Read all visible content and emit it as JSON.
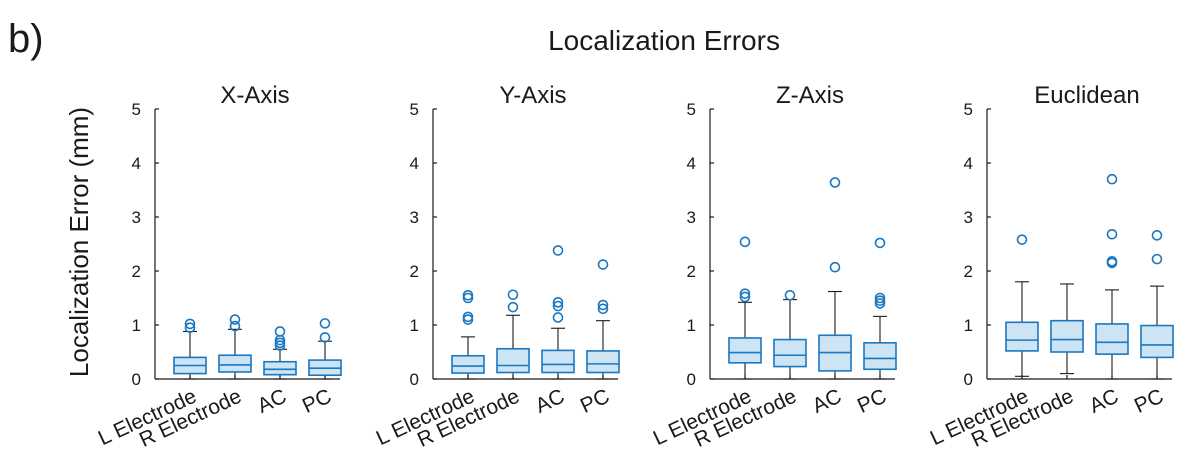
{
  "figure": {
    "panel_tag": "b)",
    "title": "Localization Errors",
    "ylabel": "Localization Error (mm)"
  },
  "chart_data": {
    "type": "box",
    "title": "Localization Errors",
    "ylabel": "Localization Error (mm)",
    "ylim": [
      0,
      5
    ],
    "yticks": [
      0,
      1,
      2,
      3,
      4,
      5
    ],
    "categories": [
      "L Electrode",
      "R Electrode",
      "AC",
      "PC"
    ],
    "colors": {
      "box_fill": "#cce4f3",
      "box_edge": "#1a78c2",
      "whisker": "#1a1a1a",
      "outlier": "#1a78c2"
    },
    "panels": [
      {
        "title": "X-Axis",
        "boxes": [
          {
            "category": "L Electrode",
            "whisker_low": 0.0,
            "q1": 0.1,
            "median": 0.25,
            "q3": 0.4,
            "whisker_high": 0.88,
            "outliers": [
              0.95,
              1.02
            ]
          },
          {
            "category": "R Electrode",
            "whisker_low": 0.0,
            "q1": 0.13,
            "median": 0.26,
            "q3": 0.44,
            "whisker_high": 0.92,
            "outliers": [
              0.98,
              1.1
            ]
          },
          {
            "category": "AC",
            "whisker_low": 0.0,
            "q1": 0.08,
            "median": 0.18,
            "q3": 0.32,
            "whisker_high": 0.55,
            "outliers": [
              0.62,
              0.67,
              0.72,
              0.88
            ]
          },
          {
            "category": "PC",
            "whisker_low": 0.0,
            "q1": 0.07,
            "median": 0.2,
            "q3": 0.35,
            "whisker_high": 0.7,
            "outliers": [
              0.77,
              1.03
            ]
          }
        ]
      },
      {
        "title": "Y-Axis",
        "boxes": [
          {
            "category": "L Electrode",
            "whisker_low": 0.0,
            "q1": 0.11,
            "median": 0.24,
            "q3": 0.43,
            "whisker_high": 0.78,
            "outliers": [
              1.1,
              1.15,
              1.5,
              1.55
            ]
          },
          {
            "category": "R Electrode",
            "whisker_low": 0.0,
            "q1": 0.12,
            "median": 0.25,
            "q3": 0.56,
            "whisker_high": 1.18,
            "outliers": [
              1.33,
              1.56
            ]
          },
          {
            "category": "AC",
            "whisker_low": 0.0,
            "q1": 0.12,
            "median": 0.27,
            "q3": 0.53,
            "whisker_high": 0.94,
            "outliers": [
              1.14,
              1.35,
              1.42,
              2.38
            ]
          },
          {
            "category": "PC",
            "whisker_low": 0.0,
            "q1": 0.12,
            "median": 0.28,
            "q3": 0.52,
            "whisker_high": 1.08,
            "outliers": [
              1.3,
              1.37,
              2.12
            ]
          }
        ]
      },
      {
        "title": "Z-Axis",
        "boxes": [
          {
            "category": "L Electrode",
            "whisker_low": 0.0,
            "q1": 0.3,
            "median": 0.49,
            "q3": 0.76,
            "whisker_high": 1.42,
            "outliers": [
              1.52,
              1.58,
              2.54
            ]
          },
          {
            "category": "R Electrode",
            "whisker_low": 0.0,
            "q1": 0.23,
            "median": 0.44,
            "q3": 0.73,
            "whisker_high": 1.47,
            "outliers": [
              1.55
            ]
          },
          {
            "category": "AC",
            "whisker_low": 0.0,
            "q1": 0.15,
            "median": 0.49,
            "q3": 0.81,
            "whisker_high": 1.62,
            "outliers": [
              2.07,
              3.64
            ]
          },
          {
            "category": "PC",
            "whisker_low": 0.0,
            "q1": 0.18,
            "median": 0.38,
            "q3": 0.67,
            "whisker_high": 1.16,
            "outliers": [
              1.4,
              1.45,
              1.5,
              2.52
            ]
          }
        ]
      },
      {
        "title": "Euclidean",
        "boxes": [
          {
            "category": "L Electrode",
            "whisker_low": 0.05,
            "q1": 0.52,
            "median": 0.72,
            "q3": 1.05,
            "whisker_high": 1.8,
            "outliers": [
              2.58
            ]
          },
          {
            "category": "R Electrode",
            "whisker_low": 0.1,
            "q1": 0.5,
            "median": 0.73,
            "q3": 1.08,
            "whisker_high": 1.76,
            "outliers": []
          },
          {
            "category": "AC",
            "whisker_low": 0.0,
            "q1": 0.46,
            "median": 0.68,
            "q3": 1.02,
            "whisker_high": 1.65,
            "outliers": [
              2.15,
              2.18,
              2.68,
              3.7
            ]
          },
          {
            "category": "PC",
            "whisker_low": 0.0,
            "q1": 0.4,
            "median": 0.63,
            "q3": 0.99,
            "whisker_high": 1.72,
            "outliers": [
              2.22,
              2.66
            ]
          }
        ]
      }
    ]
  }
}
